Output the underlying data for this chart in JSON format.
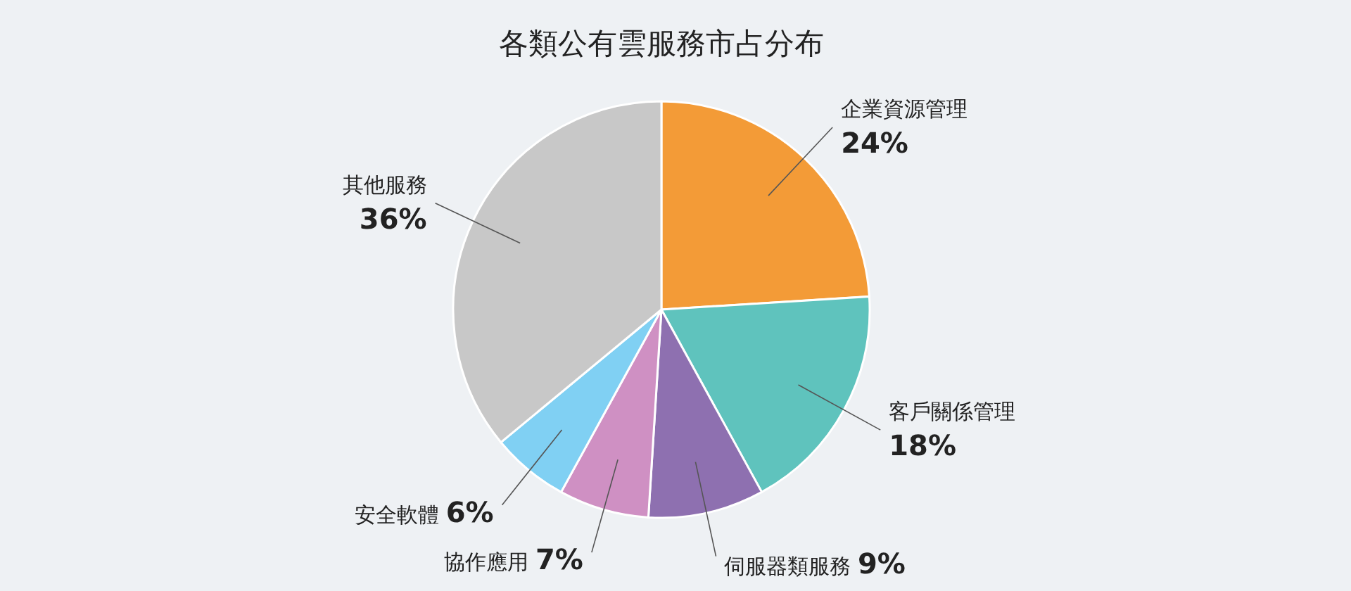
{
  "chart_data": {
    "type": "pie",
    "title": "各類公有雲服務市占分布",
    "categories": [
      "企業資源管理",
      "客戶關係管理",
      "伺服器類服務",
      "協作應用",
      "安全軟體",
      "其他服務"
    ],
    "values": [
      24,
      18,
      9,
      7,
      6,
      36
    ],
    "value_labels": [
      "24%",
      "18%",
      "9%",
      "7%",
      "6%",
      "36%"
    ],
    "colors": [
      "#f39b37",
      "#5fc3bd",
      "#8e70b0",
      "#cf90c3",
      "#80d0f3",
      "#c8c8c8"
    ]
  }
}
